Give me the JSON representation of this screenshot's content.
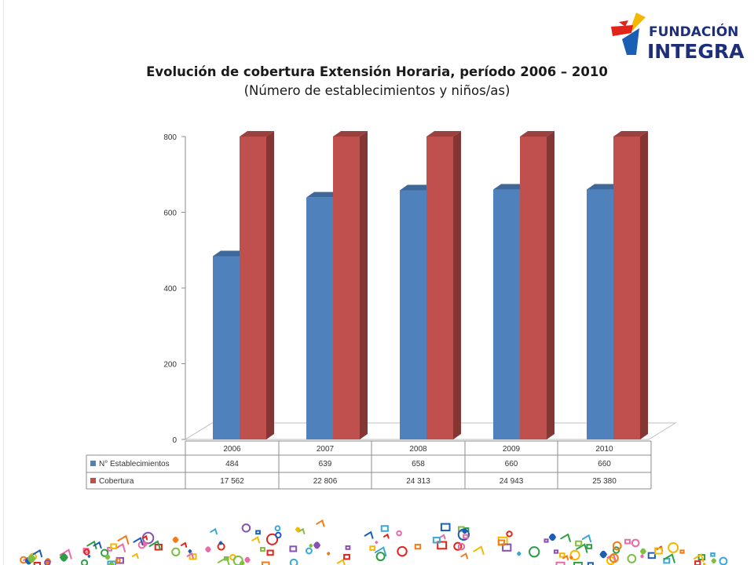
{
  "brand": {
    "line1": "FUNDACIÓN",
    "line2": "INTEGRA",
    "colors": {
      "text": "#1d2f7a",
      "red": "#e2231a",
      "yellow": "#f5b800",
      "blue": "#1a5fb4"
    }
  },
  "chart_data": {
    "type": "bar",
    "title": "Evolución de cobertura Extensión Horaria, período 2006 – 2010",
    "subtitle": "(Número de establecimientos y niños/as)",
    "categories": [
      "2006",
      "2007",
      "2008",
      "2009",
      "2010"
    ],
    "ylim": [
      0,
      800
    ],
    "yticks": [
      0,
      200,
      400,
      600,
      800
    ],
    "grid": false,
    "three_d": true,
    "series": [
      {
        "name": "N° Establecimientos",
        "values": [
          484,
          639,
          658,
          660,
          660
        ],
        "labels": [
          "484",
          "639",
          "658",
          "660",
          "660"
        ],
        "color": "#4f81bd"
      },
      {
        "name": "Cobertura",
        "values": [
          17562,
          22806,
          24313,
          24943,
          25380
        ],
        "labels": [
          "17 562",
          "22 806",
          "24 313",
          "24 943",
          "25 380"
        ],
        "color": "#c0504d"
      }
    ],
    "data_table": true,
    "legend": "data-table"
  }
}
